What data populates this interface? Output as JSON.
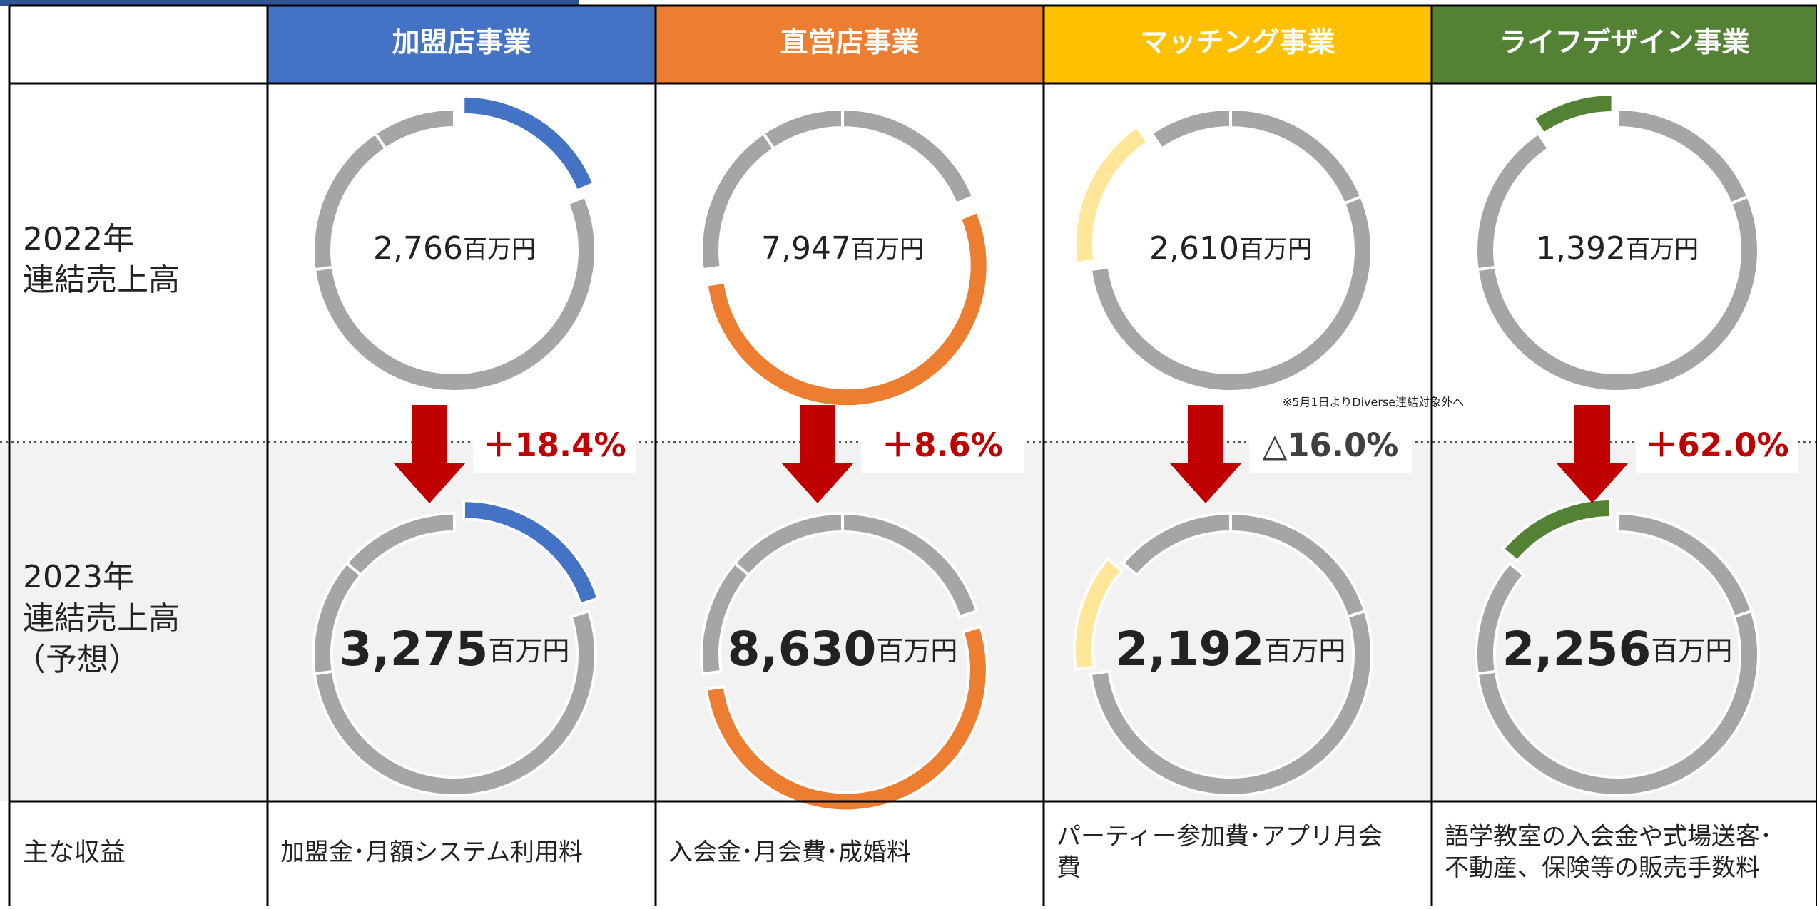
{
  "rows": {
    "y2022": [
      "2022年",
      "連結売上高"
    ],
    "y2023": [
      "2023年",
      "連結売上高",
      "（予想）"
    ],
    "revenue": "主な収益"
  },
  "unit": "百万円",
  "other_color": "#a5a5a5",
  "businesses": [
    {
      "name": "加盟店事業",
      "color": "#4472c4",
      "highlight": "#4472c4",
      "value_2022": 2766,
      "label_2022": "2,766",
      "value_2023": 3275,
      "label_2023": "3,275",
      "change": "＋18.4%",
      "change_color": "#c00000",
      "revenue": [
        "加盟金･月額システム利用料"
      ]
    },
    {
      "name": "直営店事業",
      "color": "#ed7d31",
      "highlight": "#ed7d31",
      "value_2022": 7947,
      "label_2022": "7,947",
      "value_2023": 8630,
      "label_2023": "8,630",
      "change": "＋8.6%",
      "change_color": "#c00000",
      "revenue": [
        "入会金･月会費･成婚料"
      ]
    },
    {
      "name": "マッチング事業",
      "color": "#ffc000",
      "highlight": "#ffe699",
      "value_2022": 2610,
      "label_2022": "2,610",
      "value_2023": 2192,
      "label_2023": "2,192",
      "change": "△16.0%",
      "change_color": "#404040",
      "note": "※5月1日よりDiverse連結対象外へ",
      "revenue": [
        "パーティー参加費･アプリ月会",
        "費"
      ]
    },
    {
      "name": "ライフデザイン事業",
      "color": "#548235",
      "highlight": "#548235",
      "value_2022": 1392,
      "label_2022": "1,392",
      "value_2023": 2256,
      "label_2023": "2,256",
      "change": "＋62.0%",
      "change_color": "#c00000",
      "revenue": [
        "語学教室の入会金や式場送客･",
        "不動産、保険等の販売手数料"
      ]
    }
  ]
}
